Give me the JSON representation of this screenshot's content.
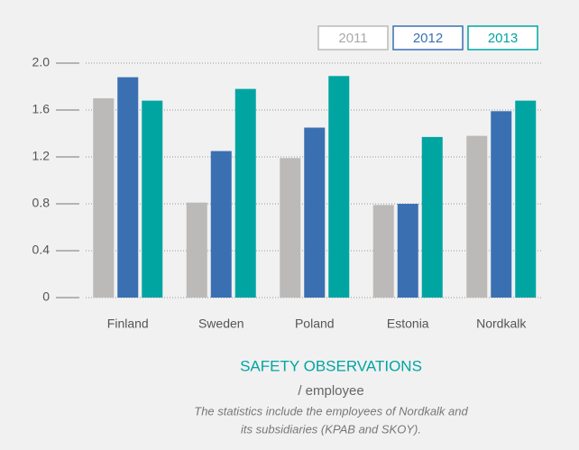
{
  "chart_data": {
    "type": "bar",
    "title": "SAFETY OBSERVATIONS",
    "subtitle": "/ employee",
    "annotations": [
      "The statistics include the employees of Nordkalk and",
      "its subsidiaries (KPAB and SKOY)."
    ],
    "categories": [
      "Finland",
      "Sweden",
      "Poland",
      "Estonia",
      "Nordkalk"
    ],
    "series": [
      {
        "name": "2011",
        "color": "#bcbab8",
        "values": [
          1.7,
          0.81,
          1.19,
          0.79,
          1.38
        ]
      },
      {
        "name": "2012",
        "color": "#3a70b2",
        "values": [
          1.88,
          1.25,
          1.45,
          0.8,
          1.59
        ]
      },
      {
        "name": "2013",
        "color": "#00a5a2",
        "values": [
          1.68,
          1.78,
          1.89,
          1.37,
          1.68
        ]
      }
    ],
    "ylim": [
      0,
      2
    ],
    "yticks": [
      0,
      0.4,
      0.8,
      1.2,
      1.6,
      {
        "value": 2,
        "label": "2.0"
      }
    ],
    "grid": true,
    "legend": "top-right"
  }
}
